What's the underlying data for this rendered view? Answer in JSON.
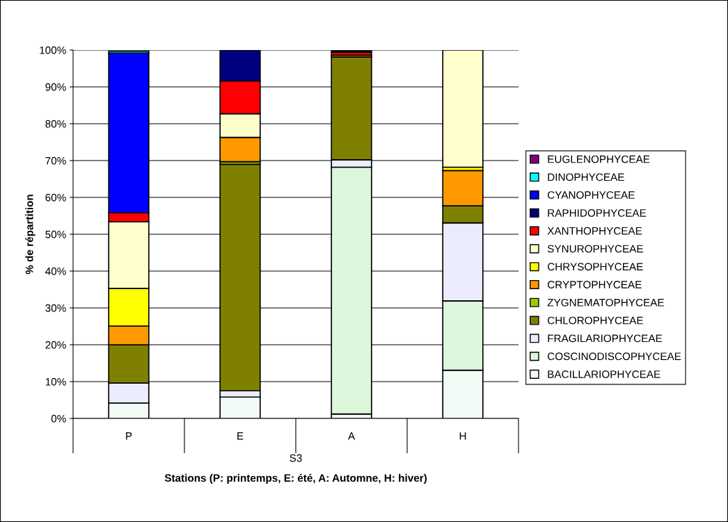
{
  "chart_data": {
    "type": "bar",
    "stacked": true,
    "ylabel": "% de répartition",
    "xlabel": "Stations (P: printemps, E: été, A: Automne, H: hiver)",
    "categories": [
      "P",
      "E",
      "A",
      "H"
    ],
    "annotations": [
      "S3"
    ],
    "ylim": [
      0,
      100
    ],
    "yticks": [
      {
        "value": 0,
        "label": "0%"
      },
      {
        "value": 10,
        "label": "10%"
      },
      {
        "value": 20,
        "label": "20%"
      },
      {
        "value": 30,
        "label": "30%"
      },
      {
        "value": 40,
        "label": "40%"
      },
      {
        "value": 50,
        "label": "50%"
      },
      {
        "value": 60,
        "label": "60%"
      },
      {
        "value": 70,
        "label": "70%"
      },
      {
        "value": 80,
        "label": "80%"
      },
      {
        "value": 90,
        "label": "90%"
      },
      {
        "value": 100,
        "label": "100%"
      }
    ],
    "grid": "y",
    "legend": "right",
    "series": [
      {
        "name": "BACILLARIOPHYCEAE",
        "color": "#f2faf5",
        "values": [
          4.2,
          5.8,
          1.2,
          13.1
        ]
      },
      {
        "name": "COSCINODISCOPHYCEAE",
        "color": "#dcf7dc",
        "values": [
          0,
          0,
          67.0,
          18.8
        ]
      },
      {
        "name": "FRAGILARIOPHYCEAE",
        "color": "#ececff",
        "values": [
          5.4,
          1.7,
          2.0,
          21.2
        ]
      },
      {
        "name": "CHLOROPHYCEAE",
        "color": "#808000",
        "values": [
          10.4,
          61.5,
          27.9,
          4.6
        ]
      },
      {
        "name": "ZYGNEMATOPHYCEAE",
        "color": "#99cc00",
        "values": [
          0,
          0.7,
          0,
          0
        ]
      },
      {
        "name": "CRYPTOPHYCEAE",
        "color": "#ff9900",
        "values": [
          5.1,
          6.6,
          0.5,
          9.6
        ]
      },
      {
        "name": "CHRYSOPHYCEAE",
        "color": "#ffff00",
        "values": [
          10.2,
          0,
          0,
          0.9
        ]
      },
      {
        "name": "SYNUROPHYCEAE",
        "color": "#ffffcc",
        "values": [
          18.1,
          6.4,
          null,
          31.8
        ]
      },
      {
        "name": "XANTHOPHYCEAE",
        "color": "#ff0000",
        "values": [
          2.4,
          8.9,
          0.8,
          0
        ]
      },
      {
        "name": "RAPHIDOPHYCEAE",
        "color": "#000080",
        "values": [
          null,
          8.4,
          0.4,
          0
        ]
      },
      {
        "name": "CYANOPHYCEAE",
        "color": "#0000ff",
        "values": [
          43.4,
          0,
          0,
          0
        ]
      },
      {
        "name": "DINOPHYCEAE",
        "color": "#00ffff",
        "values": [
          0.5,
          0,
          0,
          0
        ]
      },
      {
        "name": "EUGLENOPHYCEAE",
        "color": "#800080",
        "values": [
          0,
          0,
          0,
          0
        ]
      }
    ]
  }
}
